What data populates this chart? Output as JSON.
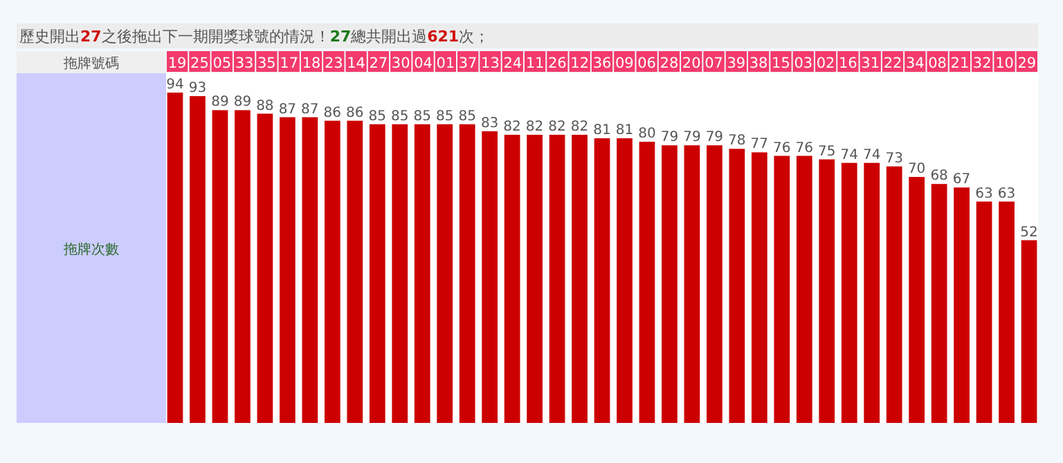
{
  "chart_data": {
    "type": "bar",
    "title": "歷史開出27之後拖出下一期開獎球號的情況！27總共開出過621次；",
    "xlabel": "拖牌號碼",
    "ylabel": "拖牌次數",
    "categories": [
      "19",
      "25",
      "05",
      "33",
      "35",
      "17",
      "18",
      "23",
      "14",
      "27",
      "30",
      "04",
      "01",
      "37",
      "13",
      "24",
      "11",
      "26",
      "12",
      "36",
      "09",
      "06",
      "28",
      "20",
      "07",
      "39",
      "38",
      "15",
      "03",
      "02",
      "16",
      "31",
      "22",
      "34",
      "08",
      "21",
      "32",
      "10",
      "29"
    ],
    "values": [
      94,
      93,
      89,
      89,
      88,
      87,
      87,
      86,
      86,
      85,
      85,
      85,
      85,
      85,
      83,
      82,
      82,
      82,
      82,
      81,
      81,
      80,
      79,
      79,
      79,
      78,
      77,
      76,
      76,
      75,
      74,
      74,
      73,
      70,
      68,
      67,
      63,
      63,
      52
    ],
    "color": "#cc0000",
    "data_labels": true
  }
}
